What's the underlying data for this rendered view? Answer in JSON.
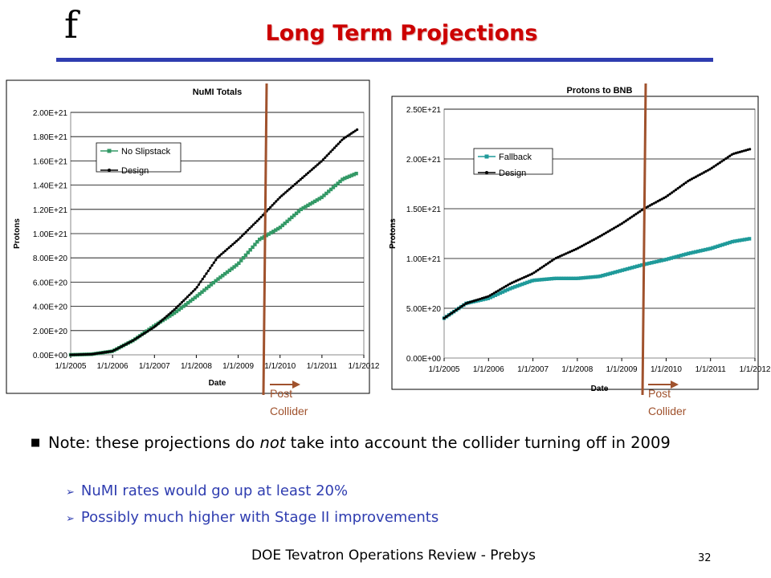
{
  "slide": {
    "logo": "f",
    "title": "Long Term Projections",
    "note_main_pre": "Note: these projections do ",
    "note_main_em": "not",
    "note_main_post": " take into account the collider turning off in 2009",
    "sub1": "NuMI rates would go up at least 20%",
    "sub2": "Possibly much higher with Stage II improvements",
    "footer": "DOE Tevatron Operations Review - Prebys",
    "page_number": "32",
    "colors": {
      "title": "#cc0000",
      "rule": "#2f3db0",
      "marker": "#a0522d",
      "series_green": "#339966",
      "series_teal": "#1f9a9a"
    }
  },
  "chart_data": [
    {
      "type": "line",
      "title": "NuMI Totals",
      "xlabel": "Date",
      "ylabel": "Protons",
      "x_ticks": [
        "1/1/2005",
        "1/1/2006",
        "1/1/2007",
        "1/1/2008",
        "1/1/2009",
        "1/1/2010",
        "1/1/2011",
        "1/1/2012"
      ],
      "y_ticks": [
        "0.00E+00",
        "2.00E+20",
        "4.00E+20",
        "6.00E+20",
        "8.00E+20",
        "1.00E+21",
        "1.20E+21",
        "1.40E+21",
        "1.60E+21",
        "1.80E+21",
        "2.00E+21"
      ],
      "xlim": [
        2005,
        2012
      ],
      "ylim": [
        0,
        2e+21
      ],
      "grid": "horizontal",
      "legend_position": "upper-left",
      "series": [
        {
          "name": "No Slipstack",
          "marker": "square",
          "color": "#339966",
          "points": [
            [
              2005,
              0
            ],
            [
              2005.5,
              5e+18
            ],
            [
              2006,
              3e+19
            ],
            [
              2006.5,
              1.2e+20
            ],
            [
              2007,
              2.4e+20
            ],
            [
              2007.5,
              3.5e+20
            ],
            [
              2008,
              4.8e+20
            ],
            [
              2008.5,
              6.2e+20
            ],
            [
              2009,
              7.5e+20
            ],
            [
              2009.5,
              9.5e+20
            ],
            [
              2010,
              1.05e+21
            ],
            [
              2010.5,
              1.2e+21
            ],
            [
              2011,
              1.3e+21
            ],
            [
              2011.5,
              1.45e+21
            ],
            [
              2011.85,
              1.5e+21
            ]
          ]
        },
        {
          "name": "Design",
          "marker": "diamond",
          "color": "#000000",
          "points": [
            [
              2005,
              0
            ],
            [
              2005.5,
              5e+18
            ],
            [
              2006,
              3e+19
            ],
            [
              2006.5,
              1.2e+20
            ],
            [
              2007,
              2.3e+20
            ],
            [
              2007.5,
              3.8e+20
            ],
            [
              2008,
              5.5e+20
            ],
            [
              2008.5,
              8e+20
            ],
            [
              2009,
              9.5e+20
            ],
            [
              2009.5,
              1.12e+21
            ],
            [
              2010,
              1.3e+21
            ],
            [
              2010.5,
              1.45e+21
            ],
            [
              2011,
              1.6e+21
            ],
            [
              2011.5,
              1.78e+21
            ],
            [
              2011.85,
              1.86e+21
            ]
          ]
        }
      ],
      "annotations": [
        {
          "text_line1": "Post",
          "text_line2": "Collider",
          "at_x": 2009.96
        }
      ]
    },
    {
      "type": "line",
      "title": "Protons to BNB",
      "xlabel": "Date",
      "ylabel": "Protons",
      "x_ticks": [
        "1/1/2005",
        "1/1/2006",
        "1/1/2007",
        "1/1/2008",
        "1/1/2009",
        "1/1/2010",
        "1/1/2011",
        "1/1/2012"
      ],
      "y_ticks": [
        "0.00E+00",
        "5.00E+20",
        "1.00E+21",
        "1.50E+21",
        "2.00E+21",
        "2.50E+21"
      ],
      "xlim": [
        2005,
        2012
      ],
      "ylim": [
        0,
        2.5e+21
      ],
      "grid": "horizontal",
      "legend_position": "upper-left",
      "series": [
        {
          "name": "Fallback",
          "marker": "square",
          "color": "#1f9a9a",
          "points": [
            [
              2005,
              4e+20
            ],
            [
              2005.5,
              5.5e+20
            ],
            [
              2006,
              6e+20
            ],
            [
              2006.5,
              7e+20
            ],
            [
              2007,
              7.8e+20
            ],
            [
              2007.5,
              8e+20
            ],
            [
              2008,
              8e+20
            ],
            [
              2008.5,
              8.2e+20
            ],
            [
              2009,
              8.8e+20
            ],
            [
              2009.5,
              9.4e+20
            ],
            [
              2010,
              9.9e+20
            ],
            [
              2010.5,
              1.05e+21
            ],
            [
              2011,
              1.1e+21
            ],
            [
              2011.5,
              1.17e+21
            ],
            [
              2011.9,
              1.2e+21
            ]
          ]
        },
        {
          "name": "Design",
          "marker": "diamond",
          "color": "#000000",
          "points": [
            [
              2005,
              4e+20
            ],
            [
              2005.5,
              5.5e+20
            ],
            [
              2006,
              6.2e+20
            ],
            [
              2006.5,
              7.5e+20
            ],
            [
              2007,
              8.5e+20
            ],
            [
              2007.5,
              1e+21
            ],
            [
              2008,
              1.1e+21
            ],
            [
              2008.5,
              1.22e+21
            ],
            [
              2009,
              1.35e+21
            ],
            [
              2009.5,
              1.5e+21
            ],
            [
              2010,
              1.62e+21
            ],
            [
              2010.5,
              1.78e+21
            ],
            [
              2011,
              1.9e+21
            ],
            [
              2011.5,
              2.05e+21
            ],
            [
              2011.9,
              2.1e+21
            ]
          ]
        }
      ],
      "annotations": [
        {
          "text_line1": "Post",
          "text_line2": "Collider",
          "at_x": 2009.8
        }
      ]
    }
  ]
}
